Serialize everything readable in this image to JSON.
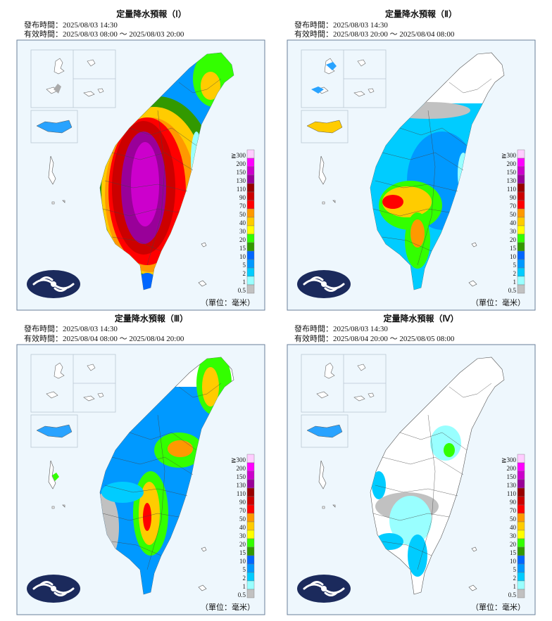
{
  "panels": [
    {
      "title": "定量降水預報（Ⅰ）",
      "issued": "發布時間：2025/08/03 14:30",
      "valid": "有效時間：2025/08/03 08:00 ～ 2025/08/03 20:00"
    },
    {
      "title": "定量降水預報（Ⅱ）",
      "issued": "發布時間：2025/08/03 14:30",
      "valid": "有效時間：2025/08/03 20:00 ～ 2025/08/04 08:00"
    },
    {
      "title": "定量降水預報（Ⅲ）",
      "issued": "發布時間：2025/08/03 14:30",
      "valid": "有效時間：2025/08/04 08:00 ～ 2025/08/04 20:00"
    },
    {
      "title": "定量降水預報（Ⅳ）",
      "issued": "發布時間：2025/08/03 14:30",
      "valid": "有效時間：2025/08/04 20:00 ～ 2025/08/05 08:00"
    }
  ],
  "legend": {
    "labels": [
      "≧300",
      "200",
      "150",
      "130",
      "110",
      "90",
      "70",
      "50",
      "40",
      "30",
      "20",
      "15",
      "10",
      "5",
      "2",
      "1",
      "0.5"
    ],
    "colors": [
      "#ffccff",
      "#ff00ff",
      "#cc00cc",
      "#990099",
      "#990000",
      "#cc0000",
      "#ff0000",
      "#ff9900",
      "#ffcc00",
      "#ffff00",
      "#33ff00",
      "#329900",
      "#0166ff",
      "#0099ff",
      "#00ccff",
      "#99ffff",
      "#c1c1c1"
    ],
    "unit": "（單位：毫米）"
  }
}
